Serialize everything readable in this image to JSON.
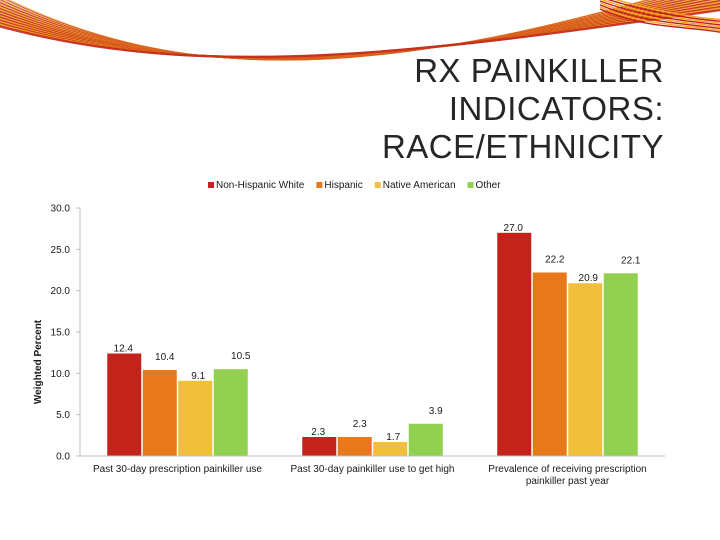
{
  "slide": {
    "title_lines": [
      "RX PAINKILLER",
      "INDICATORS:",
      "RACE/ETHNICITY"
    ]
  },
  "colors": {
    "swoosh_dark": "#c0201a",
    "swoosh_light": "#f5a623",
    "axis": "#bfbfbf"
  },
  "chart_data": {
    "type": "bar",
    "title": "",
    "xlabel": "",
    "ylabel": "Weighted Percent",
    "ylim": [
      0,
      30
    ],
    "yticks": [
      "0.0",
      "5.0",
      "10.0",
      "15.0",
      "20.0",
      "25.0",
      "30.0"
    ],
    "y_tick_values": [
      0,
      5,
      10,
      15,
      20,
      25,
      30
    ],
    "grid": false,
    "legend_position": "top",
    "categories": [
      "Past 30-day prescription painkiller use",
      "Past 30-day painkiller use to get high",
      "Prevalence of receiving prescription painkiller past year"
    ],
    "category_label_lines": [
      [
        "Past 30-day prescription painkiller use"
      ],
      [
        "Past 30-day painkiller use to get high"
      ],
      [
        "Prevalence of receiving prescription",
        "painkiller past year"
      ]
    ],
    "series": [
      {
        "name": "Non-Hispanic White",
        "color": "#c4231b",
        "values": [
          12.4,
          2.3,
          27.0
        ],
        "labels": [
          "12.4",
          "2.3",
          "27.0"
        ]
      },
      {
        "name": "Hispanic",
        "color": "#e7791b",
        "values": [
          10.4,
          2.3,
          22.2
        ],
        "labels": [
          "10.4",
          "2.3",
          "22.2"
        ]
      },
      {
        "name": "Native American",
        "color": "#f0c03a",
        "values": [
          9.1,
          1.7,
          20.9
        ],
        "labels": [
          "9.1",
          "1.7",
          "20.9"
        ]
      },
      {
        "name": "Other",
        "color": "#92d050",
        "values": [
          10.5,
          3.9,
          22.1
        ],
        "labels": [
          "10.5",
          "3.9",
          "22.1"
        ]
      }
    ]
  }
}
